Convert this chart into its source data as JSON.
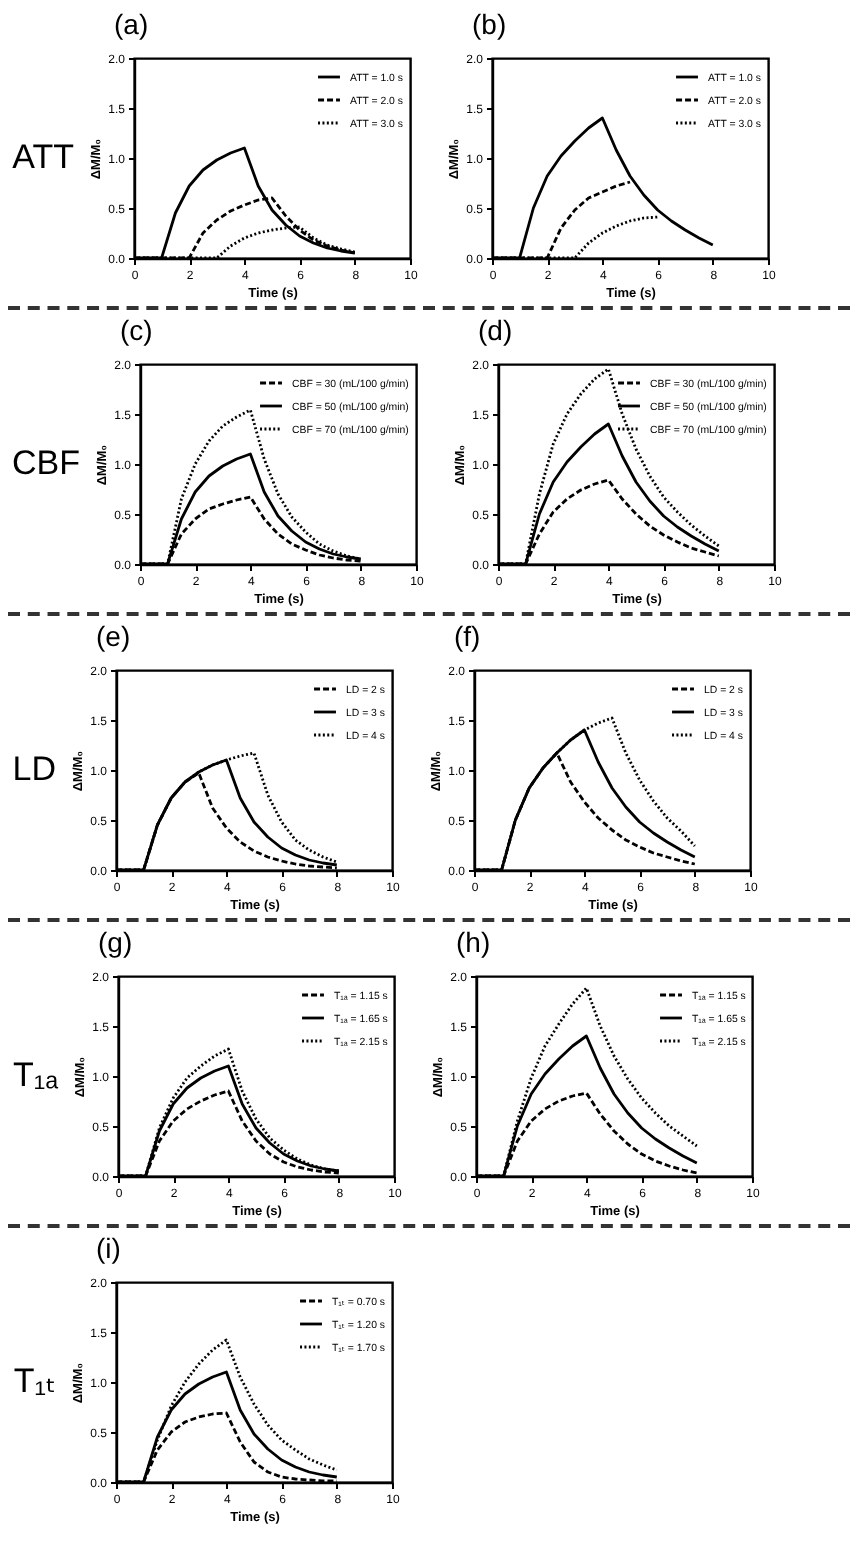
{
  "chart_data": [
    {
      "type": "line",
      "title": "(a)",
      "xlabel": "Time (s)",
      "ylabel": "ΔM/M₀",
      "annotations": [
        "ATT"
      ],
      "legend": "top right",
      "xlim": [
        0,
        10
      ],
      "xticks": [
        0,
        2,
        4,
        6,
        8,
        10
      ],
      "ylim": [
        0,
        2
      ],
      "yticks": [
        {
          "value": 0,
          "label": "0.0"
        },
        {
          "value": 0.5,
          "label": "0.5"
        },
        {
          "value": 1,
          "label": "1.0"
        },
        {
          "value": 1.5,
          "label": "1.5"
        },
        {
          "value": 2,
          "label": "2.0"
        }
      ],
      "x": [
        0,
        0.5,
        1,
        1.5,
        2,
        2.5,
        3,
        3.5,
        4,
        4.5,
        5,
        5.5,
        6,
        6.5,
        7,
        7.5,
        8
      ],
      "series": [
        {
          "name": "ATT = 1.0 s",
          "color": "#000000",
          "line_style": "solid",
          "values": [
            0,
            0,
            0,
            0.45,
            0.72,
            0.88,
            0.98,
            1.05,
            1.1,
            0.72,
            0.48,
            0.33,
            0.22,
            0.15,
            0.1,
            0.07,
            0.05
          ]
        },
        {
          "name": "ATT = 2.0 s",
          "color": "#000000",
          "line_style": "dashed",
          "values": [
            0,
            0,
            0,
            0,
            0,
            0.25,
            0.38,
            0.47,
            0.53,
            0.58,
            0.6,
            0.42,
            0.28,
            0.18,
            0.12,
            0.08,
            0.05
          ]
        },
        {
          "name": "ATT = 3.0 s",
          "color": "#000000",
          "line_style": "dotted",
          "values": [
            0,
            0,
            0,
            0,
            0,
            0,
            0,
            0.12,
            0.2,
            0.25,
            0.28,
            0.3,
            0.31,
            0.2,
            0.13,
            0.09,
            0.06
          ]
        }
      ]
    },
    {
      "type": "line",
      "title": "(b)",
      "xlabel": "Time (s)",
      "ylabel": "ΔM/M₀",
      "legend": "top right",
      "xlim": [
        0,
        10
      ],
      "xticks": [
        0,
        2,
        4,
        6,
        8,
        10
      ],
      "ylim": [
        0,
        2
      ],
      "yticks": [
        {
          "value": 0,
          "label": "0.0"
        },
        {
          "value": 0.5,
          "label": "0.5"
        },
        {
          "value": 1,
          "label": "1.0"
        },
        {
          "value": 1.5,
          "label": "1.5"
        },
        {
          "value": 2,
          "label": "2.0"
        }
      ],
      "x": [
        0,
        0.5,
        1,
        1.5,
        2,
        2.5,
        3,
        3.5,
        4,
        4.5,
        5,
        5.5,
        6,
        6.5,
        7,
        7.5,
        8
      ],
      "series": [
        {
          "name": "ATT = 1.0 s",
          "color": "#000000",
          "line_style": "solid",
          "values": [
            0,
            0,
            0,
            0.5,
            0.82,
            1.02,
            1.17,
            1.3,
            1.4,
            1.08,
            0.82,
            0.63,
            0.48,
            0.37,
            0.28,
            0.2,
            0.13
          ]
        },
        {
          "name": "ATT = 2.0 s",
          "color": "#000000",
          "line_style": "dashed",
          "values": [
            0,
            0,
            0,
            0,
            0,
            0.3,
            0.48,
            0.6,
            0.66,
            0.72,
            0.76,
            null,
            null,
            null,
            null,
            null,
            null
          ]
        },
        {
          "name": "ATT = 3.0 s",
          "color": "#000000",
          "line_style": "dotted",
          "values": [
            0,
            0,
            0,
            0,
            0,
            0,
            0,
            0.15,
            0.25,
            0.32,
            0.37,
            0.4,
            0.41,
            null,
            null,
            null,
            null
          ]
        }
      ]
    },
    {
      "type": "line",
      "title": "(c)",
      "xlabel": "Time (s)",
      "ylabel": "ΔM/M₀",
      "annotations": [
        "CBF"
      ],
      "legend": "top right",
      "xlim": [
        0,
        10
      ],
      "xticks": [
        0,
        2,
        4,
        6,
        8,
        10
      ],
      "ylim": [
        0,
        2
      ],
      "yticks": [
        {
          "value": 0,
          "label": "0.0"
        },
        {
          "value": 0.5,
          "label": "0.5"
        },
        {
          "value": 1,
          "label": "1.0"
        },
        {
          "value": 1.5,
          "label": "1.5"
        },
        {
          "value": 2,
          "label": "2.0"
        }
      ],
      "x": [
        0,
        0.5,
        1,
        1.5,
        2,
        2.5,
        3,
        3.5,
        4,
        4.5,
        5,
        5.5,
        6,
        6.5,
        7,
        7.5,
        8
      ],
      "series": [
        {
          "name": "CBF = 30 (mL/100 g/min)",
          "color": "#000000",
          "line_style": "dashed",
          "values": [
            0,
            0,
            0,
            0.3,
            0.45,
            0.55,
            0.6,
            0.64,
            0.67,
            0.45,
            0.3,
            0.2,
            0.14,
            0.09,
            0.06,
            0.04,
            0.03
          ]
        },
        {
          "name": "CBF = 50 (mL/100 g/min)",
          "color": "#000000",
          "line_style": "solid",
          "values": [
            0,
            0,
            0,
            0.45,
            0.72,
            0.88,
            0.98,
            1.05,
            1.1,
            0.72,
            0.48,
            0.33,
            0.22,
            0.15,
            0.1,
            0.07,
            0.05
          ]
        },
        {
          "name": "CBF = 70 (mL/100 g/min)",
          "color": "#000000",
          "line_style": "dotted",
          "values": [
            0,
            0,
            0,
            0.65,
            1.0,
            1.23,
            1.38,
            1.47,
            1.54,
            1.05,
            0.7,
            0.47,
            0.32,
            0.2,
            0.13,
            0.08,
            0.05
          ]
        }
      ]
    },
    {
      "type": "line",
      "title": "(d)",
      "xlabel": "Time (s)",
      "ylabel": "ΔM/M₀",
      "legend": "top right",
      "xlim": [
        0,
        10
      ],
      "xticks": [
        0,
        2,
        4,
        6,
        8,
        10
      ],
      "ylim": [
        0,
        2
      ],
      "yticks": [
        {
          "value": 0,
          "label": "0.0"
        },
        {
          "value": 0.5,
          "label": "0.5"
        },
        {
          "value": 1,
          "label": "1.0"
        },
        {
          "value": 1.5,
          "label": "1.5"
        },
        {
          "value": 2,
          "label": "2.0"
        }
      ],
      "x": [
        0,
        0.5,
        1,
        1.5,
        2,
        2.5,
        3,
        3.5,
        4,
        4.5,
        5,
        5.5,
        6,
        6.5,
        7,
        7.5,
        8
      ],
      "series": [
        {
          "name": "CBF = 30 (mL/100 g/min)",
          "color": "#000000",
          "line_style": "dashed",
          "values": [
            0,
            0,
            0,
            0.3,
            0.52,
            0.65,
            0.74,
            0.8,
            0.84,
            0.65,
            0.5,
            0.38,
            0.29,
            0.22,
            0.16,
            0.12,
            0.08
          ]
        },
        {
          "name": "CBF = 50 (mL/100 g/min)",
          "color": "#000000",
          "line_style": "solid",
          "values": [
            0,
            0,
            0,
            0.5,
            0.82,
            1.02,
            1.17,
            1.3,
            1.4,
            1.08,
            0.82,
            0.63,
            0.48,
            0.37,
            0.28,
            0.2,
            0.13
          ]
        },
        {
          "name": "CBF = 70 (mL/100 g/min)",
          "color": "#000000",
          "line_style": "dotted",
          "values": [
            0,
            0,
            0,
            0.7,
            1.2,
            1.5,
            1.7,
            1.85,
            1.95,
            1.5,
            1.15,
            0.88,
            0.67,
            0.52,
            0.39,
            0.28,
            0.18
          ]
        }
      ]
    },
    {
      "type": "line",
      "title": "(e)",
      "xlabel": "Time (s)",
      "ylabel": "ΔM/M₀",
      "annotations": [
        "LD"
      ],
      "legend": "top right",
      "xlim": [
        0,
        10
      ],
      "xticks": [
        0,
        2,
        4,
        6,
        8,
        10
      ],
      "ylim": [
        0,
        2
      ],
      "yticks": [
        {
          "value": 0,
          "label": "0.0"
        },
        {
          "value": 0.5,
          "label": "0.5"
        },
        {
          "value": 1,
          "label": "1.0"
        },
        {
          "value": 1.5,
          "label": "1.5"
        },
        {
          "value": 2,
          "label": "2.0"
        }
      ],
      "x": [
        0,
        0.5,
        1,
        1.5,
        2,
        2.5,
        3,
        3.5,
        4,
        4.5,
        5,
        5.5,
        6,
        6.5,
        7,
        7.5,
        8
      ],
      "series": [
        {
          "name": "LD = 2 s",
          "color": "#000000",
          "line_style": "dashed",
          "values": [
            0,
            0,
            0,
            0.45,
            0.72,
            0.88,
            0.97,
            0.62,
            0.42,
            0.28,
            0.19,
            0.13,
            0.09,
            0.06,
            0.04,
            0.03,
            0.02
          ]
        },
        {
          "name": "LD = 3 s",
          "color": "#000000",
          "line_style": "solid",
          "values": [
            0,
            0,
            0,
            0.45,
            0.72,
            0.88,
            0.98,
            1.05,
            1.1,
            0.72,
            0.48,
            0.33,
            0.22,
            0.15,
            0.1,
            0.07,
            0.05
          ]
        },
        {
          "name": "LD = 4 s",
          "color": "#000000",
          "line_style": "dotted",
          "values": [
            0,
            0,
            0,
            0.45,
            0.72,
            0.88,
            0.98,
            1.05,
            1.1,
            1.14,
            1.17,
            0.75,
            0.48,
            0.3,
            0.2,
            0.13,
            0.08
          ]
        }
      ]
    },
    {
      "type": "line",
      "title": "(f)",
      "xlabel": "Time (s)",
      "ylabel": "ΔM/M₀",
      "legend": "top right",
      "xlim": [
        0,
        10
      ],
      "xticks": [
        0,
        2,
        4,
        6,
        8,
        10
      ],
      "ylim": [
        0,
        2
      ],
      "yticks": [
        {
          "value": 0,
          "label": "0.0"
        },
        {
          "value": 0.5,
          "label": "0.5"
        },
        {
          "value": 1,
          "label": "1.0"
        },
        {
          "value": 1.5,
          "label": "1.5"
        },
        {
          "value": 2,
          "label": "2.0"
        }
      ],
      "x": [
        0,
        0.5,
        1,
        1.5,
        2,
        2.5,
        3,
        3.5,
        4,
        4.5,
        5,
        5.5,
        6,
        6.5,
        7,
        7.5,
        8
      ],
      "series": [
        {
          "name": "LD = 2 s",
          "color": "#000000",
          "line_style": "dashed",
          "values": [
            0,
            0,
            0,
            0.5,
            0.82,
            1.02,
            1.17,
            0.88,
            0.68,
            0.52,
            0.4,
            0.3,
            0.23,
            0.17,
            0.13,
            0.09,
            0.06
          ]
        },
        {
          "name": "LD = 3 s",
          "color": "#000000",
          "line_style": "solid",
          "values": [
            0,
            0,
            0,
            0.5,
            0.82,
            1.02,
            1.17,
            1.3,
            1.4,
            1.08,
            0.82,
            0.63,
            0.48,
            0.37,
            0.28,
            0.2,
            0.13
          ]
        },
        {
          "name": "LD = 4 s",
          "color": "#000000",
          "line_style": "dotted",
          "values": [
            0,
            0,
            0,
            0.5,
            0.82,
            1.02,
            1.17,
            1.3,
            1.4,
            1.47,
            1.52,
            1.17,
            0.9,
            0.69,
            0.52,
            0.39,
            0.24
          ]
        }
      ]
    },
    {
      "type": "line",
      "title": "(g)",
      "xlabel": "Time (s)",
      "ylabel": "ΔM/M₀",
      "annotations": [
        "T₁ₐ"
      ],
      "legend": "top right",
      "xlim": [
        0,
        10
      ],
      "xticks": [
        0,
        2,
        4,
        6,
        8,
        10
      ],
      "ylim": [
        0,
        2
      ],
      "yticks": [
        {
          "value": 0,
          "label": "0.0"
        },
        {
          "value": 0.5,
          "label": "0.5"
        },
        {
          "value": 1,
          "label": "1.0"
        },
        {
          "value": 1.5,
          "label": "1.5"
        },
        {
          "value": 2,
          "label": "2.0"
        }
      ],
      "x": [
        0,
        0.5,
        1,
        1.5,
        2,
        2.5,
        3,
        3.5,
        4,
        4.5,
        5,
        5.5,
        6,
        6.5,
        7,
        7.5,
        8
      ],
      "series": [
        {
          "name": "T₁ₐ = 1.15 s",
          "color": "#000000",
          "line_style": "dashed",
          "values": [
            0,
            0,
            0,
            0.35,
            0.55,
            0.67,
            0.75,
            0.81,
            0.85,
            0.55,
            0.35,
            0.22,
            0.14,
            0.09,
            0.06,
            0.04,
            0.03
          ]
        },
        {
          "name": "T₁ₐ = 1.65 s",
          "color": "#000000",
          "line_style": "solid",
          "values": [
            0,
            0,
            0,
            0.45,
            0.72,
            0.88,
            0.98,
            1.05,
            1.1,
            0.72,
            0.48,
            0.33,
            0.22,
            0.15,
            0.1,
            0.07,
            0.05
          ]
        },
        {
          "name": "T₁ₐ = 2.15 s",
          "color": "#000000",
          "line_style": "dotted",
          "values": [
            0,
            0,
            0,
            0.48,
            0.78,
            0.98,
            1.1,
            1.2,
            1.27,
            0.85,
            0.57,
            0.38,
            0.26,
            0.17,
            0.11,
            0.07,
            0.05
          ]
        }
      ]
    },
    {
      "type": "line",
      "title": "(h)",
      "xlabel": "Time (s)",
      "ylabel": "ΔM/M₀",
      "legend": "top right",
      "xlim": [
        0,
        10
      ],
      "xticks": [
        0,
        2,
        4,
        6,
        8,
        10
      ],
      "ylim": [
        0,
        2
      ],
      "yticks": [
        {
          "value": 0,
          "label": "0.0"
        },
        {
          "value": 0.5,
          "label": "0.5"
        },
        {
          "value": 1,
          "label": "1.0"
        },
        {
          "value": 1.5,
          "label": "1.5"
        },
        {
          "value": 2,
          "label": "2.0"
        }
      ],
      "x": [
        0,
        0.5,
        1,
        1.5,
        2,
        2.5,
        3,
        3.5,
        4,
        4.5,
        5,
        5.5,
        6,
        6.5,
        7,
        7.5,
        8
      ],
      "series": [
        {
          "name": "T₁ₐ = 1.15 s",
          "color": "#000000",
          "line_style": "dashed",
          "values": [
            0,
            0,
            0,
            0.35,
            0.55,
            0.67,
            0.75,
            0.8,
            0.83,
            0.62,
            0.45,
            0.32,
            0.22,
            0.15,
            0.1,
            0.06,
            0.03
          ]
        },
        {
          "name": "T₁ₐ = 1.65 s",
          "color": "#000000",
          "line_style": "solid",
          "values": [
            0,
            0,
            0,
            0.5,
            0.82,
            1.02,
            1.17,
            1.3,
            1.4,
            1.08,
            0.82,
            0.63,
            0.48,
            0.37,
            0.28,
            0.2,
            0.13
          ]
        },
        {
          "name": "T₁ₐ = 2.15 s",
          "color": "#000000",
          "line_style": "dotted",
          "values": [
            0,
            0,
            0,
            0.55,
            0.98,
            1.3,
            1.52,
            1.72,
            1.88,
            1.5,
            1.2,
            0.97,
            0.78,
            0.63,
            0.5,
            0.4,
            0.3
          ]
        }
      ]
    },
    {
      "type": "line",
      "title": "(i)",
      "xlabel": "Time (s)",
      "ylabel": "ΔM/M₀",
      "annotations": [
        "T₁ₜ"
      ],
      "legend": "top right",
      "xlim": [
        0,
        10
      ],
      "xticks": [
        0,
        2,
        4,
        6,
        8,
        10
      ],
      "ylim": [
        0,
        2
      ],
      "yticks": [
        {
          "value": 0,
          "label": "0.0"
        },
        {
          "value": 0.5,
          "label": "0.5"
        },
        {
          "value": 1,
          "label": "1.0"
        },
        {
          "value": 1.5,
          "label": "1.5"
        },
        {
          "value": 2,
          "label": "2.0"
        }
      ],
      "x": [
        0,
        0.5,
        1,
        1.5,
        2,
        2.5,
        3,
        3.5,
        4,
        4.5,
        5,
        5.5,
        6,
        6.5,
        7,
        7.5,
        8
      ],
      "series": [
        {
          "name": "T₁ₜ = 0.70 s",
          "color": "#000000",
          "line_style": "dashed",
          "values": [
            0,
            0,
            0,
            0.32,
            0.5,
            0.6,
            0.65,
            0.68,
            0.69,
            0.4,
            0.2,
            0.1,
            0.05,
            0.03,
            0.02,
            0.01,
            0.01
          ]
        },
        {
          "name": "T₁ₜ = 1.20 s",
          "color": "#000000",
          "line_style": "solid",
          "values": [
            0,
            0,
            0,
            0.45,
            0.72,
            0.88,
            0.98,
            1.05,
            1.1,
            0.72,
            0.48,
            0.33,
            0.22,
            0.15,
            0.1,
            0.07,
            0.05
          ]
        },
        {
          "name": "T₁ₜ = 1.70 s",
          "color": "#000000",
          "line_style": "dotted",
          "values": [
            0,
            0,
            0,
            0.42,
            0.76,
            1.0,
            1.18,
            1.32,
            1.42,
            1.05,
            0.78,
            0.57,
            0.42,
            0.32,
            0.23,
            0.17,
            0.12
          ]
        }
      ]
    }
  ]
}
